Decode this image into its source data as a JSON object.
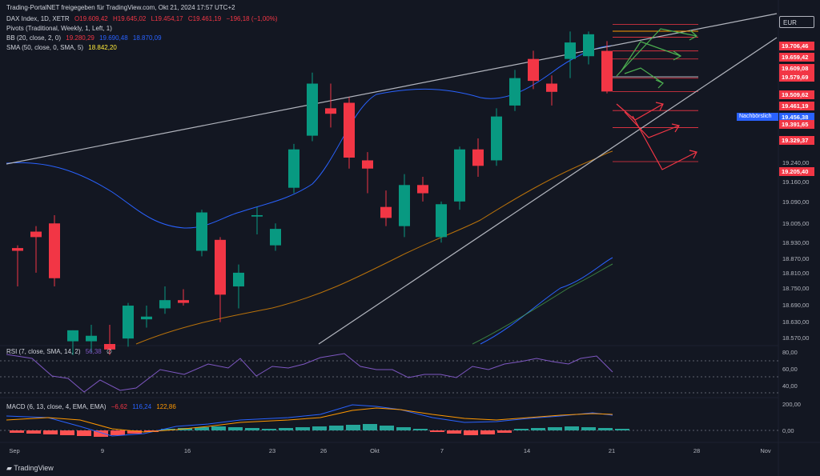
{
  "header": {
    "published": "Trading-PortalNET freigegeben für TradingView.com, Okt 21, 2024 17:57 UTC+2",
    "symbol": "DAX Index, 1D, XETR",
    "o": "O19.609,42",
    "h": "H19.645,02",
    "l": "L19.454,17",
    "c": "C19.461,19",
    "chg": "−196,18 (−1,00%)",
    "pivots": "Pivots (Traditional, Weekly, 1, Left, 1)",
    "bb_label": "BB (20, close, 2, 0)",
    "bb_v1": "19.280,29",
    "bb_v2": "19.690,48",
    "bb_v3": "18.870,09",
    "sma_label": "SMA (50, close, 0, SMA, 5)",
    "sma_v": "18.842,20"
  },
  "currency": "EUR",
  "nachboerslich": "Nachbörslich",
  "price_axis": [
    "19.240,00",
    "19.160,00",
    "19.090,00",
    "19.005,00",
    "18.930,00",
    "18.870,00",
    "18.810,00",
    "18.750,00",
    "18.690,00",
    "18.630,00",
    "18.570,00"
  ],
  "price_badges": [
    {
      "text": "19.706,46",
      "color": "#f23645"
    },
    {
      "text": "19.659,42",
      "color": "#f23645"
    },
    {
      "text": "19.609,08",
      "color": "#f23645"
    },
    {
      "text": "19.579,69",
      "color": "#f23645"
    },
    {
      "text": "19.509,62",
      "color": "#f23645"
    },
    {
      "text": "19.461,19",
      "color": "#f23645"
    },
    {
      "text": "19.456,38",
      "color": "#2962ff"
    },
    {
      "text": "19.391,65",
      "color": "#f23645"
    },
    {
      "text": "19.329,37",
      "color": "#f23645"
    },
    {
      "text": "19.205,40",
      "color": "#f23645"
    }
  ],
  "rsi": {
    "label": "RSI (7, close, SMA, 14, 2)",
    "value": "56,38",
    "extra": "∅",
    "axis": [
      "80,00",
      "60,00",
      "40,00"
    ]
  },
  "macd": {
    "label": "MACD (6, 13, close, 4, EMA, EMA)",
    "v1": "−6,62",
    "v2": "116,24",
    "v3": "122,86",
    "axis": [
      "200,00",
      "0,00"
    ]
  },
  "x_axis": [
    "Sep",
    "9",
    "16",
    "23",
    "26",
    "Okt",
    "7",
    "14",
    "21",
    "28",
    "Nov"
  ],
  "logo": "TradingView",
  "chart_data": {
    "type": "candlestick",
    "instrument": "DAX Index, 1D, XETR",
    "ylim": [
      18540,
      19760
    ],
    "candles": [
      {
        "o": 18890,
        "h": 18900,
        "l": 18750,
        "c": 18880
      },
      {
        "o": 18950,
        "h": 18970,
        "l": 18800,
        "c": 18930
      },
      {
        "o": 18980,
        "h": 19010,
        "l": 18750,
        "c": 18780
      },
      {
        "o": 18550,
        "h": 18590,
        "l": 18500,
        "c": 18590
      },
      {
        "o": 18550,
        "h": 18610,
        "l": 18510,
        "c": 18570
      },
      {
        "o": 18540,
        "h": 18610,
        "l": 18500,
        "c": 18520
      },
      {
        "o": 18560,
        "h": 18690,
        "l": 18530,
        "c": 18680
      },
      {
        "o": 18630,
        "h": 18680,
        "l": 18600,
        "c": 18640
      },
      {
        "o": 18670,
        "h": 18750,
        "l": 18650,
        "c": 18700
      },
      {
        "o": 18700,
        "h": 18740,
        "l": 18680,
        "c": 18690
      },
      {
        "o": 18880,
        "h": 19030,
        "l": 18860,
        "c": 19020
      },
      {
        "o": 18920,
        "h": 18930,
        "l": 18620,
        "c": 18720
      },
      {
        "o": 18750,
        "h": 18830,
        "l": 18670,
        "c": 18800
      },
      {
        "o": 19005,
        "h": 19040,
        "l": 18940,
        "c": 19010
      },
      {
        "o": 18900,
        "h": 18980,
        "l": 18880,
        "c": 18960
      },
      {
        "o": 19110,
        "h": 19270,
        "l": 19090,
        "c": 19250
      },
      {
        "o": 19300,
        "h": 19530,
        "l": 19280,
        "c": 19490
      },
      {
        "o": 19400,
        "h": 19490,
        "l": 19330,
        "c": 19380
      },
      {
        "o": 19420,
        "h": 19440,
        "l": 19180,
        "c": 19220
      },
      {
        "o": 19210,
        "h": 19240,
        "l": 19090,
        "c": 19180
      },
      {
        "o": 19040,
        "h": 19100,
        "l": 18970,
        "c": 19000
      },
      {
        "o": 18970,
        "h": 19160,
        "l": 18930,
        "c": 19120
      },
      {
        "o": 19120,
        "h": 19150,
        "l": 19060,
        "c": 19090
      },
      {
        "o": 18930,
        "h": 19060,
        "l": 18910,
        "c": 19050
      },
      {
        "o": 19060,
        "h": 19260,
        "l": 19030,
        "c": 19250
      },
      {
        "o": 19250,
        "h": 19290,
        "l": 19150,
        "c": 19190
      },
      {
        "o": 19210,
        "h": 19400,
        "l": 19190,
        "c": 19370
      },
      {
        "o": 19410,
        "h": 19540,
        "l": 19390,
        "c": 19510
      },
      {
        "o": 19580,
        "h": 19610,
        "l": 19470,
        "c": 19500
      },
      {
        "o": 19490,
        "h": 19520,
        "l": 19410,
        "c": 19460
      },
      {
        "o": 19580,
        "h": 19680,
        "l": 19510,
        "c": 19640
      },
      {
        "o": 19590,
        "h": 19680,
        "l": 19560,
        "c": 19670
      },
      {
        "o": 19609.42,
        "h": 19645.02,
        "l": 19454.17,
        "c": 19461.19
      }
    ],
    "pivot_levels": [
      19706.46,
      19659.42,
      19609.08,
      19579.69,
      19509.62,
      19461.19,
      19391.65,
      19329.37,
      19205.4
    ],
    "colors": {
      "up": "#089981",
      "down": "#f23645",
      "bb": "#2962ff",
      "sma": "#ff9800"
    }
  }
}
